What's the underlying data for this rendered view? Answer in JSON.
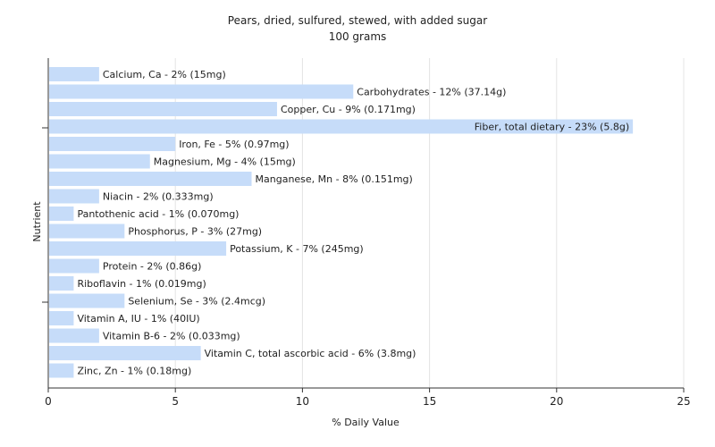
{
  "chart_data": {
    "type": "bar",
    "orientation": "horizontal",
    "title": "Pears, dried, sulfured, stewed, with added sugar",
    "subtitle": "100 grams",
    "xlabel": "% Daily Value",
    "ylabel": "Nutrient",
    "xlim": [
      0,
      25
    ],
    "xticks": [
      0,
      5,
      10,
      15,
      20,
      25
    ],
    "grid": "vertical",
    "bar_color": "#c6dcf9",
    "categories": [
      "Calcium, Ca",
      "Carbohydrates",
      "Copper, Cu",
      "Fiber, total dietary",
      "Iron, Fe",
      "Magnesium, Mg",
      "Manganese, Mn",
      "Niacin",
      "Pantothenic acid",
      "Phosphorus, P",
      "Potassium, K",
      "Protein",
      "Riboflavin",
      "Selenium, Se",
      "Vitamin A, IU",
      "Vitamin B-6",
      "Vitamin C, total ascorbic acid",
      "Zinc, Zn"
    ],
    "values": [
      2,
      12,
      9,
      23,
      5,
      4,
      8,
      2,
      1,
      3,
      7,
      2,
      1,
      3,
      1,
      2,
      6,
      1
    ],
    "labels": [
      "Calcium, Ca - 2% (15mg)",
      "Carbohydrates - 12% (37.14g)",
      "Copper, Cu - 9% (0.171mg)",
      "Fiber, total dietary - 23% (5.8g)",
      "Iron, Fe - 5% (0.97mg)",
      "Magnesium, Mg - 4% (15mg)",
      "Manganese, Mn - 8% (0.151mg)",
      "Niacin - 2% (0.333mg)",
      "Pantothenic acid - 1% (0.070mg)",
      "Phosphorus, P - 3% (27mg)",
      "Potassium, K - 7% (245mg)",
      "Protein - 2% (0.86g)",
      "Riboflavin - 1% (0.019mg)",
      "Selenium, Se - 3% (2.4mcg)",
      "Vitamin A, IU - 1% (40IU)",
      "Vitamin B-6 - 2% (0.033mg)",
      "Vitamin C, total ascorbic acid - 6% (3.8mg)",
      "Zinc, Zn - 1% (0.18mg)"
    ]
  }
}
